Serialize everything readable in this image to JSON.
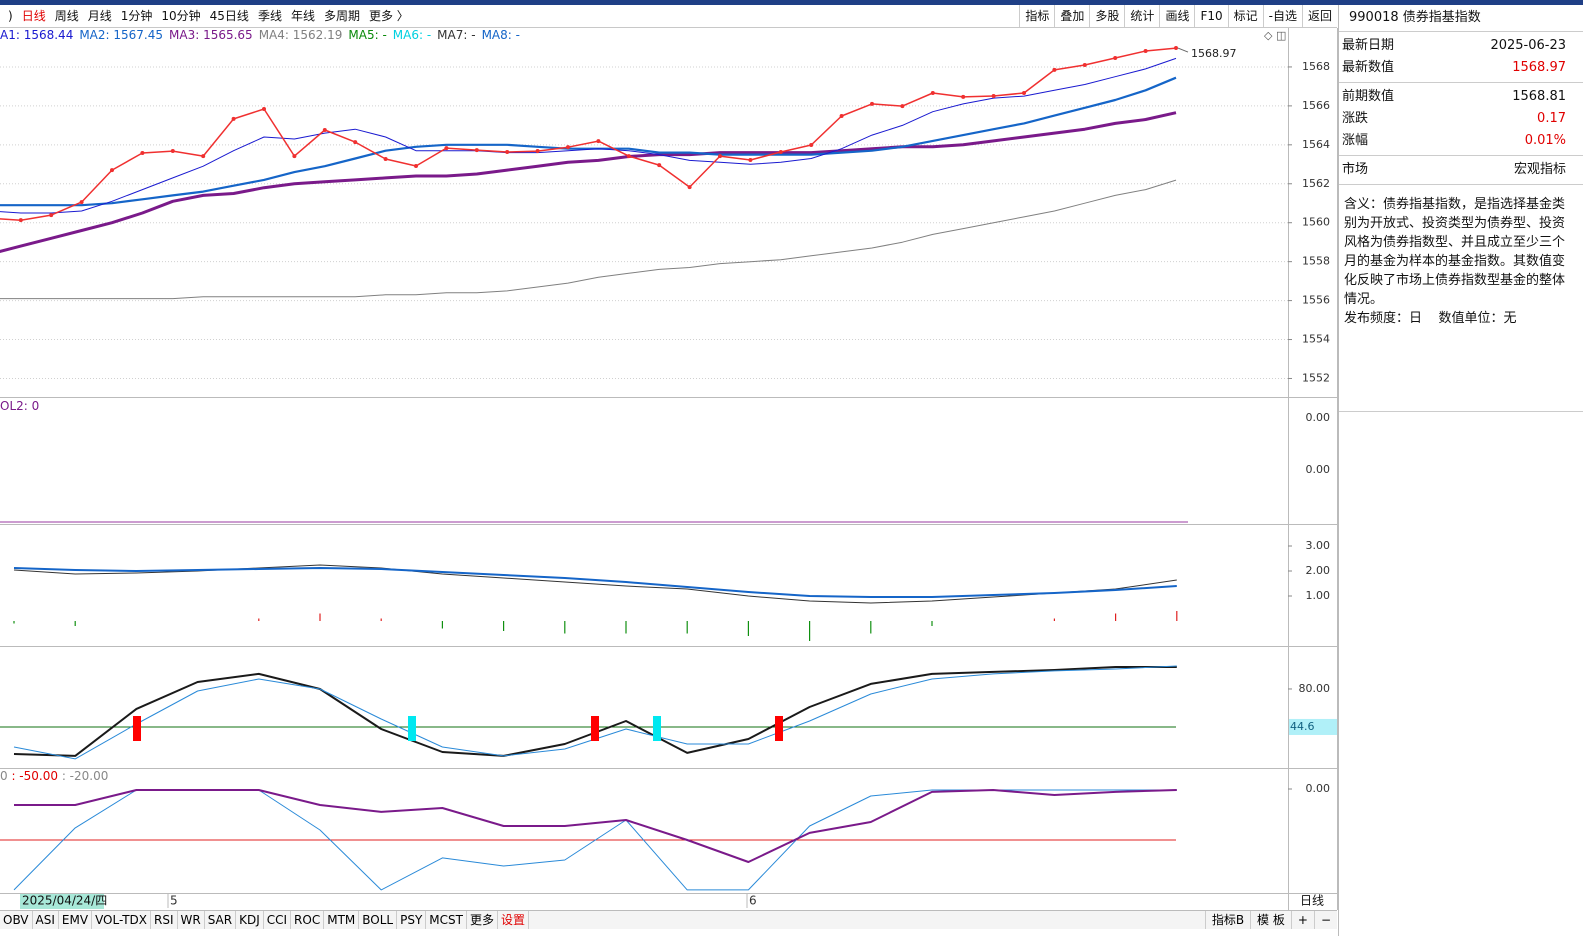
{
  "toolbar": {
    "periods": [
      {
        "label": ")"
      },
      {
        "label": "日线",
        "active": true
      },
      {
        "label": "周线"
      },
      {
        "label": "月线"
      },
      {
        "label": "1分钟"
      },
      {
        "label": "10分钟"
      },
      {
        "label": "45日线"
      },
      {
        "label": "季线"
      },
      {
        "label": "年线"
      },
      {
        "label": "多周期"
      },
      {
        "label": "更多 〉"
      }
    ],
    "tools": [
      "指标",
      "叠加",
      "多股",
      "统计",
      "画线",
      "F10",
      "标记",
      "-自选",
      "返回"
    ]
  },
  "main_chart": {
    "type": "line",
    "ylim": [
      1551.1,
      1570.0
    ],
    "yticks": [
      {
        "value": 1552,
        "label": "1552"
      },
      {
        "value": 1554,
        "label": "1554"
      },
      {
        "value": 1556,
        "label": "1556"
      },
      {
        "value": 1558,
        "label": "1558"
      },
      {
        "value": 1560,
        "label": "1560"
      },
      {
        "value": 1562,
        "label": "1562"
      },
      {
        "value": 1564,
        "label": "1564"
      },
      {
        "value": 1566,
        "label": "1566"
      },
      {
        "value": 1568,
        "label": "1568"
      }
    ],
    "grid": true,
    "legend": [
      {
        "text": "A1: 1568.44",
        "color": "#1a1ad0"
      },
      {
        "text": "MA2: 1567.45",
        "color": "#1565c8"
      },
      {
        "text": "MA3: 1565.65",
        "color": "#7a1a8a"
      },
      {
        "text": "MA4: 1562.19",
        "color": "#808080"
      },
      {
        "text": "MA5: -",
        "color": "#0a8a0a"
      },
      {
        "text": "MA6: -",
        "color": "#00d0e0"
      },
      {
        "text": "MA7: -",
        "color": "#333333"
      },
      {
        "text": "MA8: -",
        "color": "#1565c8"
      }
    ],
    "last_label": {
      "value": 1568.97,
      "label": "1568.97"
    },
    "series": [
      {
        "color": "#808080",
        "width": 1,
        "values": [
          1556.1,
          1556.1,
          1556.1,
          1556.1,
          1556.1,
          1556.1,
          1556.1,
          1556.2,
          1556.2,
          1556.2,
          1556.2,
          1556.2,
          1556.2,
          1556.3,
          1556.3,
          1556.4,
          1556.4,
          1556.5,
          1556.7,
          1556.9,
          1557.2,
          1557.4,
          1557.6,
          1557.7,
          1557.9,
          1558.0,
          1558.1,
          1558.3,
          1558.5,
          1558.7,
          1559.0,
          1559.4,
          1559.7,
          1560.0,
          1560.3,
          1560.6,
          1561.0,
          1561.4,
          1561.7,
          1562.19
        ]
      },
      {
        "color": "#7a1a8a",
        "width": 3,
        "values": [
          1558.4,
          1558.8,
          1559.2,
          1559.6,
          1560.0,
          1560.5,
          1561.1,
          1561.4,
          1561.5,
          1561.8,
          1562.0,
          1562.1,
          1562.2,
          1562.3,
          1562.4,
          1562.4,
          1562.5,
          1562.7,
          1562.9,
          1563.1,
          1563.2,
          1563.4,
          1563.5,
          1563.5,
          1563.6,
          1563.6,
          1563.6,
          1563.6,
          1563.7,
          1563.8,
          1563.9,
          1563.9,
          1564.0,
          1564.2,
          1564.4,
          1564.6,
          1564.8,
          1565.1,
          1565.3,
          1565.65
        ]
      },
      {
        "color": "#1565c8",
        "width": 2.2,
        "values": [
          1560.9,
          1560.9,
          1560.9,
          1560.9,
          1561.0,
          1561.2,
          1561.4,
          1561.6,
          1561.9,
          1562.2,
          1562.6,
          1562.9,
          1563.3,
          1563.7,
          1563.9,
          1564.0,
          1564.0,
          1564.0,
          1563.9,
          1563.8,
          1563.8,
          1563.8,
          1563.6,
          1563.6,
          1563.5,
          1563.5,
          1563.5,
          1563.5,
          1563.6,
          1563.7,
          1563.9,
          1564.2,
          1564.5,
          1564.8,
          1565.1,
          1565.5,
          1565.9,
          1566.3,
          1566.8,
          1567.45
        ]
      },
      {
        "color": "#1a1ad0",
        "width": 1,
        "values": [
          1560.6,
          1560.5,
          1560.5,
          1560.6,
          1561.1,
          1561.7,
          1562.3,
          1562.9,
          1563.7,
          1564.4,
          1564.3,
          1564.6,
          1564.8,
          1564.4,
          1563.7,
          1563.7,
          1563.7,
          1563.6,
          1563.6,
          1563.7,
          1563.8,
          1563.7,
          1563.5,
          1563.2,
          1563.1,
          1563.0,
          1563.1,
          1563.3,
          1563.8,
          1564.5,
          1565.0,
          1565.7,
          1566.1,
          1566.4,
          1566.5,
          1566.8,
          1567.1,
          1567.5,
          1567.9,
          1568.44
        ]
      },
      {
        "color": "#f03030",
        "width": 1.5,
        "markers": true,
        "values": [
          1560.23,
          1560.13,
          1560.39,
          1561.06,
          1562.7,
          1563.58,
          1563.68,
          1563.42,
          1565.33,
          1565.84,
          1563.42,
          1564.76,
          1564.14,
          1563.27,
          1562.91,
          1563.83,
          1563.73,
          1563.63,
          1563.68,
          1563.88,
          1564.19,
          1563.42,
          1562.96,
          1561.83,
          1563.42,
          1563.22,
          1563.63,
          1563.99,
          1565.48,
          1566.1,
          1565.99,
          1566.66,
          1566.46,
          1566.51,
          1566.66,
          1567.85,
          1568.1,
          1568.46,
          1568.82,
          1568.97
        ]
      }
    ]
  },
  "vol_panel": {
    "legend": [
      {
        "text": "OL2: 0",
        "color": "#7a1a8a"
      }
    ],
    "axis_labels": [
      "0.00",
      "0.00"
    ]
  },
  "macd_panel": {
    "type": "line",
    "ylim": [
      -0.96,
      3.84
    ],
    "yticks": [
      {
        "value": 1,
        "label": "1.00"
      },
      {
        "value": 2,
        "label": "2.00"
      },
      {
        "value": 3,
        "label": "3.00"
      }
    ],
    "series": [
      {
        "color": "#333333",
        "width": 1,
        "values": [
          2.04,
          1.88,
          1.92,
          2.0,
          2.12,
          2.24,
          2.12,
          1.88,
          1.72,
          1.56,
          1.4,
          1.28,
          1.0,
          0.8,
          0.72,
          0.8,
          0.96,
          1.12,
          1.28,
          1.64
        ]
      },
      {
        "color": "#1565c8",
        "width": 2,
        "values": [
          2.12,
          2.04,
          2.0,
          2.04,
          2.08,
          2.12,
          2.08,
          1.96,
          1.84,
          1.72,
          1.56,
          1.36,
          1.16,
          1.0,
          0.96,
          0.96,
          1.04,
          1.12,
          1.24,
          1.4
        ]
      }
    ],
    "bars": {
      "up_color": "#e02020",
      "down_color": "#109010",
      "values": [
        -0.1,
        -0.2,
        0,
        0,
        0.1,
        0.3,
        0.1,
        -0.3,
        -0.4,
        -0.5,
        -0.5,
        -0.5,
        -0.6,
        -0.8,
        -0.5,
        -0.2,
        0,
        0.1,
        0.3,
        0.4
      ]
    }
  },
  "kdj_panel": {
    "type": "line",
    "ylim": [
      7.3,
      119.1
    ],
    "yticks": [
      {
        "value": 80,
        "label": "80.00"
      }
    ],
    "ref": {
      "value": 44.6,
      "label": "44.6",
      "color": "#107010"
    },
    "series": [
      {
        "color": "#1a1a1a",
        "width": 2,
        "values": [
          19.4,
          17.6,
          61.4,
          86.5,
          94.0,
          80.0,
          42.7,
          21.3,
          17.6,
          28.7,
          50.2,
          20.4,
          33.4,
          63.2,
          84.7,
          94.0,
          95.9,
          97.7,
          100.5,
          100.5
        ]
      },
      {
        "color": "#2a8ad8",
        "width": 1,
        "values": [
          25.9,
          14.8,
          47.4,
          78.1,
          89.3,
          80.0,
          52.0,
          25.9,
          17.6,
          24.1,
          42.7,
          28.7,
          28.7,
          50.2,
          75.3,
          89.3,
          94.0,
          96.8,
          98.6,
          101.4
        ]
      }
    ]
  },
  "wr_panel": {
    "type": "line",
    "ylim": [
      -102,
      19.6
    ],
    "yticks": [
      {
        "value": 0,
        "label": "0.00"
      }
    ],
    "legend": [
      {
        "text": "0 ",
        "color": "#888888"
      },
      {
        "text": ": -50.00",
        "color": "#e00000"
      },
      {
        "text": " : -20.00",
        "color": "#888888"
      }
    ],
    "ref": {
      "value": -50,
      "color": "#e02020"
    },
    "series": [
      {
        "color": "#2a8ad8",
        "width": 1,
        "values": [
          -99.0,
          -38.2,
          -1.0,
          -1.0,
          -1.0,
          -40.2,
          -99.0,
          -67.6,
          -75.5,
          -69.6,
          -30.4,
          -99.0,
          -99.0,
          -36.3,
          -6.9,
          -1.0,
          -1.0,
          -1.0,
          -1.0,
          -1.0
        ]
      },
      {
        "color": "#7a1a8a",
        "width": 2,
        "values": [
          -15.7,
          -15.7,
          -1.0,
          -1.0,
          -1.0,
          -15.7,
          -22.5,
          -18.6,
          -36.3,
          -36.3,
          -30.4,
          -50.0,
          -71.6,
          -43.1,
          -32.4,
          -2.9,
          -1.0,
          -5.9,
          -2.9,
          -1.0
        ]
      }
    ]
  },
  "x_axis": {
    "cursor_label": "2025/04/24/四",
    "labels": [
      "5",
      "6"
    ],
    "period": "日线"
  },
  "info": {
    "title": "990018 债券指基指数",
    "rows": [
      [
        {
          "k": "最新日期",
          "v": "2025-06-23"
        },
        {
          "k": "最新数值",
          "v": "1568.97",
          "red": true
        }
      ],
      [
        {
          "k": "前期数值",
          "v": "1568.81"
        },
        {
          "k": "涨跌",
          "v": "0.17",
          "red": true
        },
        {
          "k": "涨幅",
          "v": "0.01%",
          "red": true
        }
      ],
      [
        {
          "k": "市场",
          "v": "宏观指标"
        }
      ]
    ],
    "description": "含义：债券指基指数，是指选择基金类别为开放式、投资类型为债券型、投资风格为债券指数型、并且成立至少三个月的基金为样本的基金指数。其数值变化反映了市场上债券指数型基金的整体情况。",
    "frequency": "发布频度：日",
    "unit": "数值单位：无"
  },
  "bottom_tabs": {
    "tabs": [
      {
        "label": "OBV"
      },
      {
        "label": "ASI"
      },
      {
        "label": "EMV"
      },
      {
        "label": "VOL-TDX"
      },
      {
        "label": "RSI"
      },
      {
        "label": "WR"
      },
      {
        "label": "SAR"
      },
      {
        "label": "KDJ"
      },
      {
        "label": "CCI"
      },
      {
        "label": "ROC"
      },
      {
        "label": "MTM"
      },
      {
        "label": "BOLL"
      },
      {
        "label": "PSY"
      },
      {
        "label": "MCST"
      },
      {
        "label": "更多"
      },
      {
        "label": "设置",
        "active": true
      }
    ],
    "right": [
      "指标B",
      "模 板",
      "+",
      "−"
    ]
  }
}
